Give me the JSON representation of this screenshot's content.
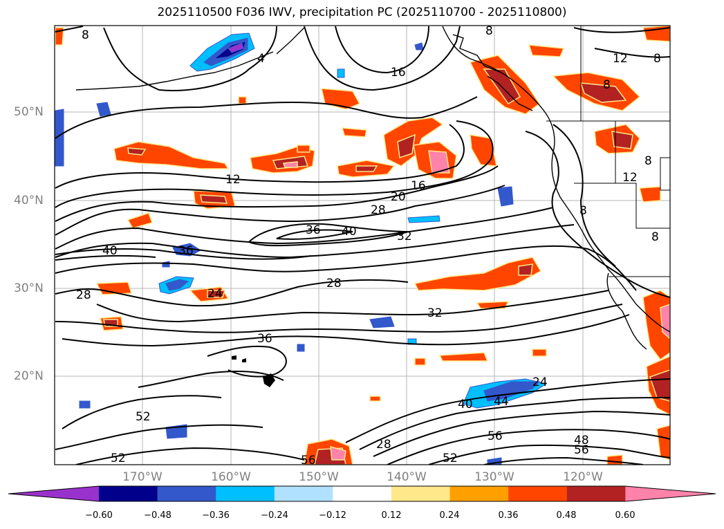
{
  "title": "2025110500 F036 IWV, precipitation PC (2025110700 - 2025110800)",
  "lat_labels": [
    "50°N",
    "40°N",
    "30°N",
    "20°N"
  ],
  "lon_labels": [
    "170°W",
    "160°W",
    "150°W",
    "140°W",
    "130°W",
    "120°W"
  ],
  "colorbar": {
    "ticks": [
      "−0.60",
      "−0.48",
      "−0.36",
      "−0.24",
      "−0.12",
      "0.12",
      "0.24",
      "0.36",
      "0.48",
      "0.60"
    ],
    "colors": [
      "#9932cc",
      "#00008b",
      "#3358cc",
      "#00bfff",
      "#b0e2ff",
      "#ffffff",
      "#ffe88a",
      "#ffa000",
      "#ff4500",
      "#b22222",
      "#ff82ab"
    ]
  },
  "contour_labels": [
    {
      "text": "8"
    },
    {
      "text": "4"
    },
    {
      "text": "16"
    },
    {
      "text": "8"
    },
    {
      "text": "12"
    },
    {
      "text": "8"
    },
    {
      "text": "12"
    },
    {
      "text": "16"
    },
    {
      "text": "20"
    },
    {
      "text": "28"
    },
    {
      "text": "36"
    },
    {
      "text": "40"
    },
    {
      "text": "32"
    },
    {
      "text": "40"
    },
    {
      "text": "36"
    },
    {
      "text": "28"
    },
    {
      "text": "28"
    },
    {
      "text": "24"
    },
    {
      "text": "32"
    },
    {
      "text": "36"
    },
    {
      "text": "24"
    },
    {
      "text": "40"
    },
    {
      "text": "44"
    },
    {
      "text": "52"
    },
    {
      "text": "52"
    },
    {
      "text": "56"
    },
    {
      "text": "28"
    },
    {
      "text": "56"
    },
    {
      "text": "48"
    },
    {
      "text": "56"
    },
    {
      "text": "52"
    },
    {
      "text": "8"
    },
    {
      "text": "8"
    },
    {
      "text": "12"
    },
    {
      "text": "8"
    },
    {
      "text": "8"
    }
  ]
}
